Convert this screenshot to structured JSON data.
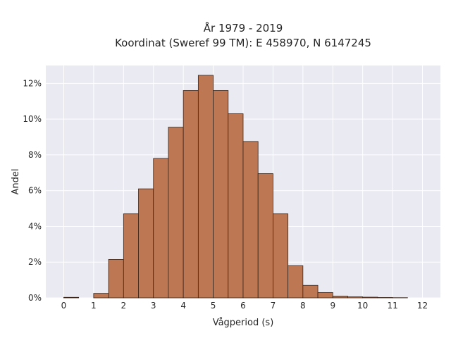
{
  "chart_data": {
    "type": "bar",
    "title": "År 1979 - 2019",
    "subtitle": "Koordinat (Sweref 99 TM): E 458970, N 6147245",
    "xlabel": "Vågperiod (s)",
    "ylabel": "Andel",
    "x_ticks": [
      "0",
      "1",
      "2",
      "3",
      "4",
      "5",
      "6",
      "7",
      "8",
      "9",
      "10",
      "11",
      "12"
    ],
    "y_ticks": [
      "0%",
      "2%",
      "4%",
      "6%",
      "8%",
      "10%",
      "12%"
    ],
    "xlim": [
      -0.6,
      12.6
    ],
    "ylim": [
      0,
      13
    ],
    "bin_width": 0.5,
    "bins": [
      {
        "start": 0.0,
        "value": 0.03
      },
      {
        "start": 0.5,
        "value": 0.0
      },
      {
        "start": 1.0,
        "value": 0.25
      },
      {
        "start": 1.5,
        "value": 2.15
      },
      {
        "start": 2.0,
        "value": 4.7
      },
      {
        "start": 2.5,
        "value": 6.1
      },
      {
        "start": 3.0,
        "value": 7.8
      },
      {
        "start": 3.5,
        "value": 9.55
      },
      {
        "start": 4.0,
        "value": 11.6
      },
      {
        "start": 4.5,
        "value": 12.45
      },
      {
        "start": 5.0,
        "value": 11.6
      },
      {
        "start": 5.5,
        "value": 10.3
      },
      {
        "start": 6.0,
        "value": 8.75
      },
      {
        "start": 6.5,
        "value": 6.95
      },
      {
        "start": 7.0,
        "value": 4.7
      },
      {
        "start": 7.5,
        "value": 1.8
      },
      {
        "start": 8.0,
        "value": 0.7
      },
      {
        "start": 8.5,
        "value": 0.3
      },
      {
        "start": 9.0,
        "value": 0.1
      },
      {
        "start": 9.5,
        "value": 0.06
      },
      {
        "start": 10.0,
        "value": 0.04
      },
      {
        "start": 10.5,
        "value": 0.02
      },
      {
        "start": 11.0,
        "value": 0.01
      }
    ],
    "grid": true,
    "colors": {
      "bar_fill": "#bd7752",
      "bar_edge": "#3a2418",
      "plot_background": "#e9eaf2",
      "grid": "#ffffff",
      "text": "#262626"
    }
  }
}
